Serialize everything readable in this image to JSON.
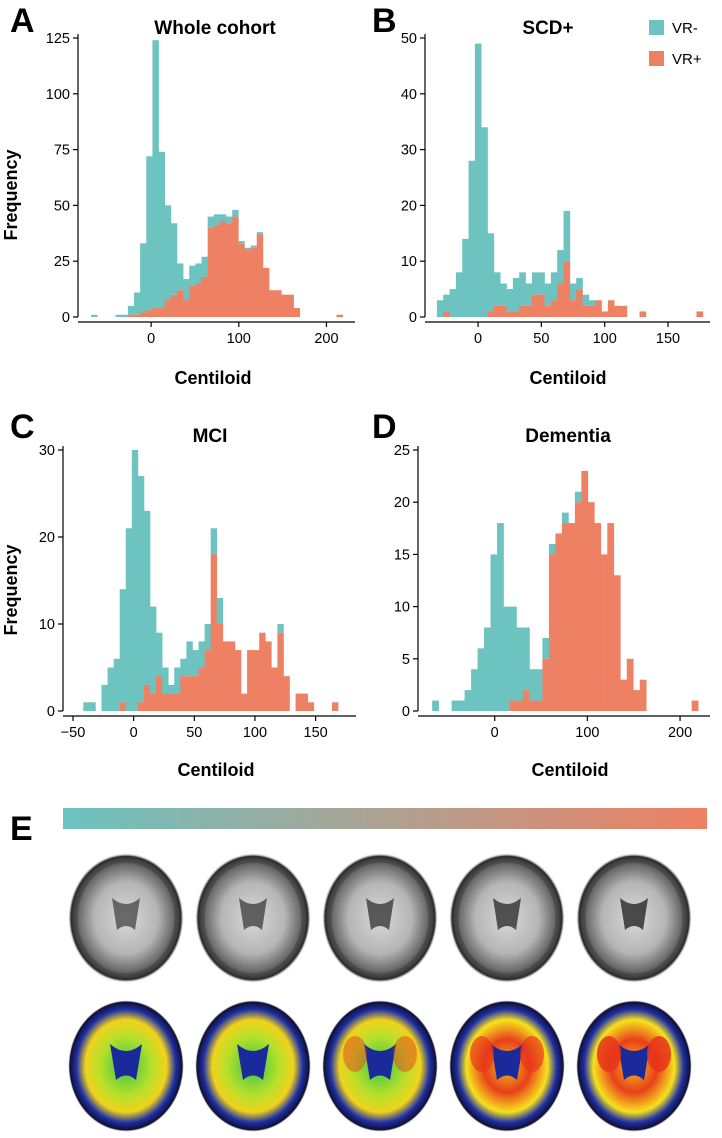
{
  "colors": {
    "vr_neg": "#6cc3c0",
    "vr_pos": "#ee8063",
    "axis": "#000000"
  },
  "legend": {
    "items": [
      {
        "label": "VR-",
        "color": "#6cc3c0"
      },
      {
        "label": "VR+",
        "color": "#ee8063"
      }
    ]
  },
  "chart_data": [
    {
      "panel": "A",
      "type": "bar",
      "stacked": true,
      "title": "Whole cohort",
      "xlabel": "Centiloid",
      "ylabel": "Frequency",
      "xlim": [
        -72,
        228
      ],
      "ylim": [
        0,
        125
      ],
      "xticks": [
        0,
        100,
        200
      ],
      "yticks": [
        0,
        25,
        50,
        75,
        100,
        125
      ],
      "x": [
        -65,
        -58,
        -51,
        -44,
        -37,
        -30,
        -23,
        -16,
        -9,
        -2,
        5,
        12,
        19,
        26,
        33,
        40,
        47,
        54,
        61,
        68,
        75,
        82,
        89,
        96,
        103,
        110,
        117,
        124,
        131,
        138,
        145,
        152,
        159,
        166,
        173,
        180,
        187,
        194,
        201,
        208,
        215
      ],
      "series": [
        {
          "name": "VR-",
          "values": [
            1,
            0,
            0,
            0,
            1,
            1,
            4,
            10,
            31,
            69,
            120,
            70,
            42,
            32,
            12,
            9,
            9,
            9,
            9,
            5,
            5,
            3,
            3,
            3,
            1,
            1,
            1,
            1,
            0,
            0,
            0,
            0,
            0,
            0,
            0,
            0,
            0,
            0,
            0,
            0,
            0
          ]
        },
        {
          "name": "VR+",
          "values": [
            0,
            0,
            0,
            0,
            0,
            0,
            1,
            1,
            2,
            3,
            4,
            4,
            8,
            10,
            12,
            8,
            14,
            15,
            18,
            40,
            41,
            43,
            42,
            45,
            33,
            30,
            31,
            37,
            22,
            12,
            12,
            10,
            10,
            4,
            0,
            0,
            0,
            0,
            0,
            0,
            1
          ]
        }
      ]
    },
    {
      "panel": "B",
      "type": "bar",
      "stacked": true,
      "title": "SCD+",
      "xlabel": "Centiloid",
      "ylabel": "",
      "xlim": [
        -34,
        180
      ],
      "ylim": [
        0,
        50
      ],
      "xticks": [
        0,
        50,
        100,
        150
      ],
      "yticks": [
        0,
        10,
        20,
        30,
        40,
        50
      ],
      "x": [
        -30,
        -25,
        -20,
        -15,
        -10,
        -5,
        0,
        5,
        10,
        15,
        20,
        25,
        30,
        35,
        40,
        45,
        50,
        55,
        60,
        65,
        70,
        75,
        80,
        85,
        90,
        95,
        100,
        105,
        110,
        115,
        120,
        125,
        130,
        135,
        140,
        145,
        150,
        155,
        160,
        165,
        170,
        175
      ],
      "series": [
        {
          "name": "VR-",
          "values": [
            3,
            3,
            5,
            8,
            14,
            28,
            49,
            34,
            14,
            6,
            4,
            4,
            6,
            6,
            4,
            4,
            4,
            4,
            5,
            6,
            9,
            3,
            2,
            2,
            1,
            0,
            0,
            0,
            0,
            0,
            0,
            0,
            0,
            0,
            0,
            0,
            0,
            0,
            0,
            0,
            0,
            0
          ]
        },
        {
          "name": "VR+",
          "values": [
            0,
            1,
            0,
            0,
            0,
            0,
            0,
            0,
            1,
            2,
            2,
            1,
            1,
            2,
            2,
            4,
            4,
            2,
            3,
            6,
            10,
            3,
            5,
            2,
            2,
            3,
            1,
            3,
            2,
            2,
            0,
            0,
            1,
            0,
            0,
            0,
            0,
            0,
            0,
            0,
            0,
            1
          ]
        }
      ]
    },
    {
      "panel": "C",
      "type": "bar",
      "stacked": true,
      "title": "MCI",
      "xlabel": "Centiloid",
      "ylabel": "Frequency",
      "xlim": [
        -50,
        180
      ],
      "ylim": [
        0,
        30
      ],
      "xticks": [
        -50,
        0,
        50,
        100,
        150
      ],
      "yticks": [
        0,
        10,
        20,
        30
      ],
      "x": [
        -39,
        -34,
        -29,
        -24,
        -19,
        -14,
        -9,
        -4,
        1,
        6,
        11,
        16,
        21,
        26,
        31,
        36,
        41,
        46,
        51,
        56,
        61,
        66,
        71,
        76,
        81,
        86,
        91,
        96,
        101,
        106,
        111,
        116,
        121,
        126,
        131,
        136,
        141,
        146,
        151,
        156,
        161,
        166,
        171
      ],
      "series": [
        {
          "name": "VR-",
          "values": [
            1,
            1,
            0,
            3,
            5,
            6,
            13,
            21,
            30,
            26,
            20,
            10,
            5,
            3,
            1,
            3,
            2,
            4,
            3,
            3,
            3,
            3,
            3,
            0,
            0,
            0,
            0,
            0,
            0,
            0,
            0,
            0,
            1,
            0,
            0,
            0,
            0,
            0,
            0,
            0,
            0,
            0,
            0
          ]
        },
        {
          "name": "VR+",
          "values": [
            0,
            0,
            0,
            0,
            0,
            0,
            1,
            0,
            0,
            1,
            3,
            2,
            4,
            2,
            2,
            2,
            4,
            4,
            4,
            5,
            7,
            18,
            10,
            8,
            8,
            7,
            2,
            7,
            7,
            9,
            8,
            5,
            9,
            4,
            0,
            2,
            2,
            1,
            0,
            0,
            0,
            1,
            0
          ]
        }
      ]
    },
    {
      "panel": "D",
      "type": "bar",
      "stacked": true,
      "title": "Dementia",
      "xlabel": "Centiloid",
      "ylabel": "",
      "xlim": [
        -72,
        228
      ],
      "ylim": [
        0,
        25
      ],
      "xticks": [
        0,
        100,
        200
      ],
      "yticks": [
        0,
        5,
        10,
        15,
        20,
        25
      ],
      "x": [
        -64,
        -57,
        -50,
        -43,
        -36,
        -29,
        -22,
        -15,
        -8,
        -1,
        6,
        13,
        20,
        27,
        34,
        41,
        48,
        55,
        62,
        69,
        76,
        83,
        90,
        97,
        104,
        111,
        118,
        125,
        132,
        139,
        146,
        153,
        160,
        167,
        174,
        181,
        188,
        195,
        202,
        209,
        216
      ],
      "series": [
        {
          "name": "VR-",
          "values": [
            1,
            0,
            0,
            1,
            1,
            2,
            4,
            6,
            8,
            15,
            18,
            10,
            9,
            7,
            6,
            3,
            3,
            2,
            1,
            0,
            1,
            0,
            1,
            0,
            0,
            0,
            0,
            0,
            0,
            0,
            0,
            0,
            0,
            0,
            0,
            0,
            0,
            0,
            0,
            0,
            0
          ]
        },
        {
          "name": "VR+",
          "values": [
            0,
            0,
            0,
            0,
            0,
            0,
            0,
            0,
            0,
            0,
            0,
            0,
            1,
            1,
            2,
            1,
            1,
            5,
            15,
            17,
            18,
            18,
            20,
            23,
            20,
            18,
            15,
            18,
            13,
            3,
            5,
            2,
            3,
            0,
            0,
            0,
            0,
            0,
            0,
            0,
            1
          ]
        }
      ]
    }
  ],
  "panel_e": {
    "letter": "E",
    "gradient_start": "#6cc3c0",
    "gradient_end": "#ee8063",
    "scan_rows": [
      {
        "row": "grayscale",
        "count": 5
      },
      {
        "row": "color",
        "count": 5
      }
    ]
  }
}
